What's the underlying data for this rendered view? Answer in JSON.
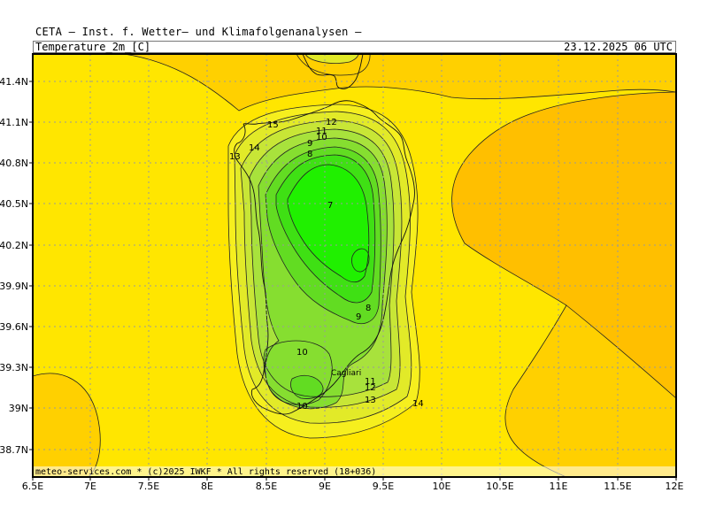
{
  "header": {
    "title": "CETA — Inst. f. Wetter— und Klimafolgenanalysen —",
    "field": "Temperature_2m_[C]",
    "valid_time": "23.12.2025 06 UTC"
  },
  "footer": {
    "credit": "meteo-services.com * (c)2025 IWKF * All rights reserved (18+036)"
  },
  "map": {
    "place_label": "Cagliari",
    "x_ticks": [
      "6.5E",
      "7E",
      "7.5E",
      "8E",
      "8.5E",
      "9E",
      "9.5E",
      "10E",
      "10.5E",
      "11E",
      "11.5E",
      "12E"
    ],
    "y_ticks": [
      "41.4N",
      "41.1N",
      "40.8N",
      "40.5N",
      "40.2N",
      "39.9N",
      "39.6N",
      "39.3N",
      "39N",
      "38.7N"
    ],
    "contour_labels": [
      "15",
      "12",
      "11",
      "10",
      "9",
      "8",
      "14",
      "13",
      "7",
      "8",
      "9",
      "10",
      "11",
      "12",
      "13",
      "14",
      "10"
    ],
    "colors": {
      "t15_plus": "#ffe600",
      "t16": "#ffd000",
      "t17": "#ffbf00",
      "t14": "#f6ef1e",
      "t13": "#e2ea28",
      "t12": "#c8e636",
      "t11": "#a8e23c",
      "t10": "#86de30",
      "t9": "#62dc22",
      "t8": "#3fe014",
      "t7": "#20f000",
      "grid": "#a0a0a0",
      "contour": "#222222"
    }
  }
}
